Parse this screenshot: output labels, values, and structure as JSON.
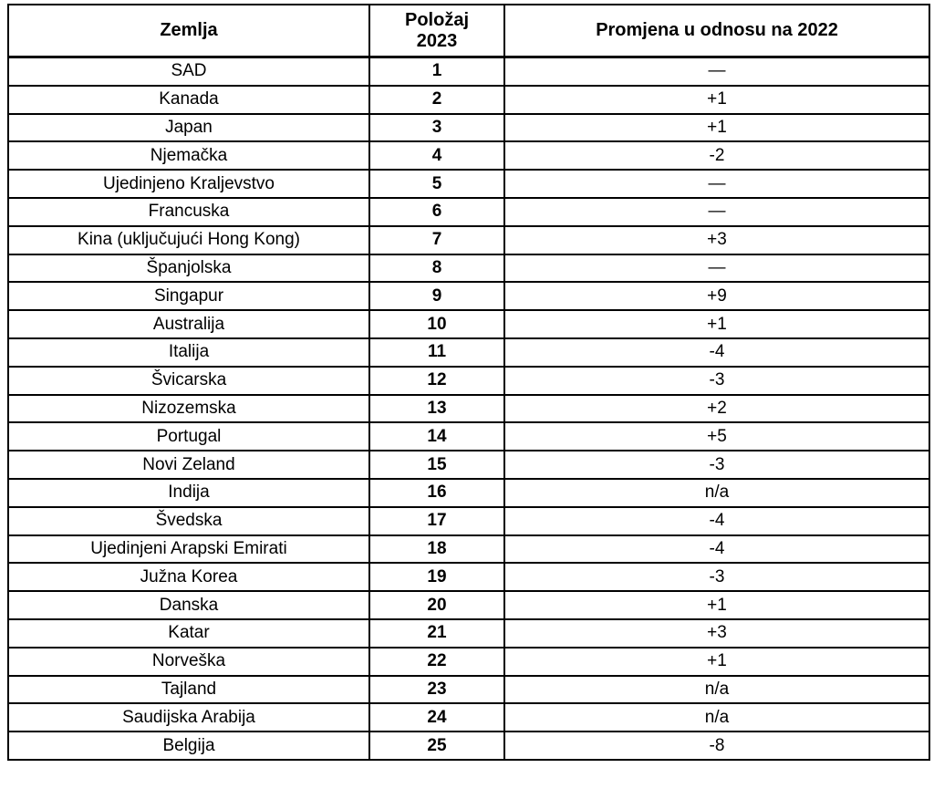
{
  "chart_data": {
    "type": "table",
    "title": "",
    "columns": [
      "Zemlja",
      "Položaj 2023",
      "Promjena u odnosu na 2022"
    ],
    "rows": [
      [
        "SAD",
        "1",
        "—"
      ],
      [
        "Kanada",
        "2",
        "+1"
      ],
      [
        "Japan",
        "3",
        "+1"
      ],
      [
        "Njemačka",
        "4",
        "-2"
      ],
      [
        "Ujedinjeno Kraljevstvo",
        "5",
        "—"
      ],
      [
        "Francuska",
        "6",
        "—"
      ],
      [
        "Kina (uključujući Hong Kong)",
        "7",
        "+3"
      ],
      [
        "Španjolska",
        "8",
        "—"
      ],
      [
        "Singapur",
        "9",
        "+9"
      ],
      [
        "Australija",
        "10",
        "+1"
      ],
      [
        "Italija",
        "11",
        "-4"
      ],
      [
        "Švicarska",
        "12",
        "-3"
      ],
      [
        "Nizozemska",
        "13",
        "+2"
      ],
      [
        "Portugal",
        "14",
        "+5"
      ],
      [
        "Novi Zeland",
        "15",
        "-3"
      ],
      [
        "Indija",
        "16",
        "n/a"
      ],
      [
        "Švedska",
        "17",
        "-4"
      ],
      [
        "Ujedinjeni Arapski Emirati",
        "18",
        "-4"
      ],
      [
        "Južna Korea",
        "19",
        "-3"
      ],
      [
        "Danska",
        "20",
        "+1"
      ],
      [
        "Katar",
        "21",
        "+3"
      ],
      [
        "Norveška",
        "22",
        "+1"
      ],
      [
        "Tajland",
        "23",
        "n/a"
      ],
      [
        "Saudijska Arabija",
        "24",
        "n/a"
      ],
      [
        "Belgija",
        "25",
        "-8"
      ]
    ],
    "layout": {
      "border_color": "#000000",
      "background_color": "#ffffff",
      "text_color": "#000000",
      "header_bold": true,
      "position_column_bold": true
    }
  }
}
